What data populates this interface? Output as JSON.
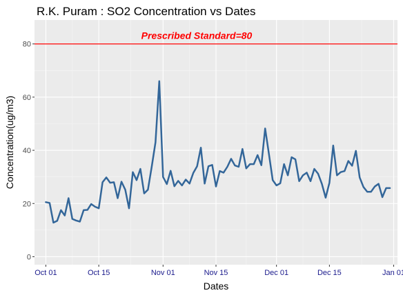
{
  "chart_data": {
    "type": "line",
    "title": "R.K. Puram : SO2 Concentration vs Dates",
    "xlabel": "Dates",
    "ylabel": "Concentration(ug/m3)",
    "ylim": [
      -3,
      89
    ],
    "xlim": [
      "2016-09-28",
      "2017-01-02"
    ],
    "yticks": [
      0,
      20,
      40,
      60,
      80
    ],
    "ytick_labels": [
      "0",
      "20",
      "40",
      "60",
      "80"
    ],
    "xticks": [
      "2016-10-01",
      "2016-10-15",
      "2016-11-01",
      "2016-11-15",
      "2016-12-01",
      "2016-12-15",
      "2017-01-01"
    ],
    "xtick_labels": [
      "Oct 01",
      "Oct 15",
      "Nov 01",
      "Nov 15",
      "Dec 01",
      "Dec 15",
      "Jan 01"
    ],
    "grid": true,
    "line_color": "#336699",
    "panel_color": "#ebebeb",
    "reference_line": {
      "value": 80,
      "label": "Prescribed Standard=80",
      "color": "#ff0000"
    },
    "series": [
      {
        "x": [
          "2016-10-01",
          "2016-10-02",
          "2016-10-03",
          "2016-10-04",
          "2016-10-05",
          "2016-10-06",
          "2016-10-07",
          "2016-10-08",
          "2016-10-09",
          "2016-10-10",
          "2016-10-11",
          "2016-10-12",
          "2016-10-13",
          "2016-10-14",
          "2016-10-15",
          "2016-10-16",
          "2016-10-17",
          "2016-10-18",
          "2016-10-19",
          "2016-10-20",
          "2016-10-21",
          "2016-10-22",
          "2016-10-23",
          "2016-10-24",
          "2016-10-25",
          "2016-10-26",
          "2016-10-27",
          "2016-10-28",
          "2016-10-29",
          "2016-10-30",
          "2016-10-31",
          "2016-11-01",
          "2016-11-02",
          "2016-11-03",
          "2016-11-04",
          "2016-11-05",
          "2016-11-06",
          "2016-11-07",
          "2016-11-08",
          "2016-11-09",
          "2016-11-10",
          "2016-11-11",
          "2016-11-12",
          "2016-11-13",
          "2016-11-14",
          "2016-11-15",
          "2016-11-16",
          "2016-11-17",
          "2016-11-18",
          "2016-11-19",
          "2016-11-20",
          "2016-11-21",
          "2016-11-22",
          "2016-11-23",
          "2016-11-24",
          "2016-11-25",
          "2016-11-26",
          "2016-11-27",
          "2016-11-28",
          "2016-11-29",
          "2016-11-30",
          "2016-12-01",
          "2016-12-02",
          "2016-12-03",
          "2016-12-04",
          "2016-12-05",
          "2016-12-06",
          "2016-12-07",
          "2016-12-08",
          "2016-12-09",
          "2016-12-10",
          "2016-12-11",
          "2016-12-12",
          "2016-12-13",
          "2016-12-14",
          "2016-12-15",
          "2016-12-16",
          "2016-12-17",
          "2016-12-18",
          "2016-12-19",
          "2016-12-20",
          "2016-12-21",
          "2016-12-22",
          "2016-12-23",
          "2016-12-24",
          "2016-12-25",
          "2016-12-26",
          "2016-12-27",
          "2016-12-28",
          "2016-12-29",
          "2016-12-30",
          "2016-12-31"
        ],
        "y": [
          20.5,
          20.2,
          12.8,
          13.5,
          17.5,
          15.5,
          22,
          14.2,
          13.6,
          13.2,
          17.5,
          17.6,
          19.8,
          18.8,
          18.2,
          28,
          29.8,
          27.8,
          28,
          22,
          28.2,
          25.2,
          18.2,
          31.8,
          28.8,
          33,
          23.8,
          25.2,
          33.8,
          43,
          66,
          30,
          27.3,
          32.3,
          26.5,
          28.5,
          26.8,
          29,
          27.5,
          31.5,
          34,
          41,
          27.5,
          34,
          34.5,
          26.4,
          32.2,
          31.6,
          33.8,
          36.8,
          34.3,
          33.8,
          40.5,
          33.2,
          34.8,
          34.8,
          38.2,
          34.4,
          48.2,
          38.6,
          28.8,
          26.8,
          27.6,
          34.8,
          30.6,
          37.4,
          36.6,
          28.4,
          30.6,
          31.6,
          28.4,
          33,
          31.2,
          27.4,
          22.2,
          27.8,
          41.8,
          30.6,
          31.8,
          32.2,
          36,
          34.2,
          39.8,
          29.8,
          26.2,
          24.4,
          24.4,
          26.4,
          27.4,
          22.4,
          25.8,
          25.8
        ]
      }
    ]
  }
}
